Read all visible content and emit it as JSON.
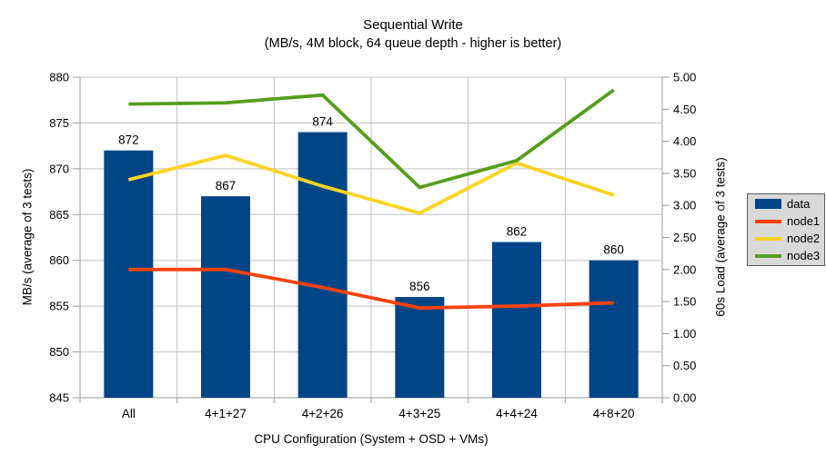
{
  "chart_data": {
    "type": "bar+line combo",
    "title": "Sequential Write",
    "subtitle": "(MB/s, 4M block, 64 queue depth - higher is better)",
    "xlabel": "CPU Configuration (System + OSD + VMs)",
    "ylabel_left": "MB/s (average of 3 tests)",
    "ylabel_right": "60s Load (average of 3 tests)",
    "categories": [
      "All",
      "4+1+27",
      "4+2+26",
      "4+3+25",
      "4+4+24",
      "4+8+20"
    ],
    "series": [
      {
        "name": "data",
        "type": "bar",
        "axis": "left",
        "color": "#004586",
        "values": [
          872,
          867,
          874,
          856,
          862,
          860
        ],
        "data_labels": [
          "872",
          "867",
          "874",
          "856",
          "862",
          "860"
        ]
      },
      {
        "name": "node1",
        "type": "line",
        "axis": "right",
        "color": "#FF420E",
        "values": [
          2.0,
          2.0,
          1.72,
          1.4,
          1.43,
          1.48
        ]
      },
      {
        "name": "node2",
        "type": "line",
        "axis": "right",
        "color": "#FFD320",
        "values": [
          3.4,
          3.78,
          3.3,
          2.88,
          3.66,
          3.16
        ]
      },
      {
        "name": "node3",
        "type": "line",
        "axis": "right",
        "color": "#579D1C",
        "values": [
          4.58,
          4.6,
          4.72,
          3.28,
          3.7,
          4.8
        ]
      }
    ],
    "axis_left": {
      "min": 845,
      "max": 880,
      "step": 5,
      "tick_labels": [
        "845",
        "850",
        "855",
        "860",
        "865",
        "870",
        "875",
        "880"
      ]
    },
    "axis_right": {
      "min": 0,
      "max": 5,
      "step": 0.5,
      "tick_labels": [
        "0.00",
        "0.50",
        "1.00",
        "1.50",
        "2.00",
        "2.50",
        "3.00",
        "3.50",
        "4.00",
        "4.50",
        "5.00"
      ]
    },
    "legend": {
      "position": "right",
      "entries": [
        {
          "label": "data",
          "swatch": "bar",
          "color": "#004586"
        },
        {
          "label": "node1",
          "swatch": "line",
          "color": "#FF420E"
        },
        {
          "label": "node2",
          "swatch": "line",
          "color": "#FFD320"
        },
        {
          "label": "node3",
          "swatch": "line",
          "color": "#579D1C"
        }
      ]
    },
    "grid": {
      "horizontal": true,
      "vertical": true
    },
    "style": {
      "background": "#FFFFFF",
      "gridline": "#C0C0C0",
      "axis_line": "#9B9B9B",
      "text": "#000000",
      "legend_bg": "#D9D9D9",
      "legend_border": "#595959"
    }
  }
}
